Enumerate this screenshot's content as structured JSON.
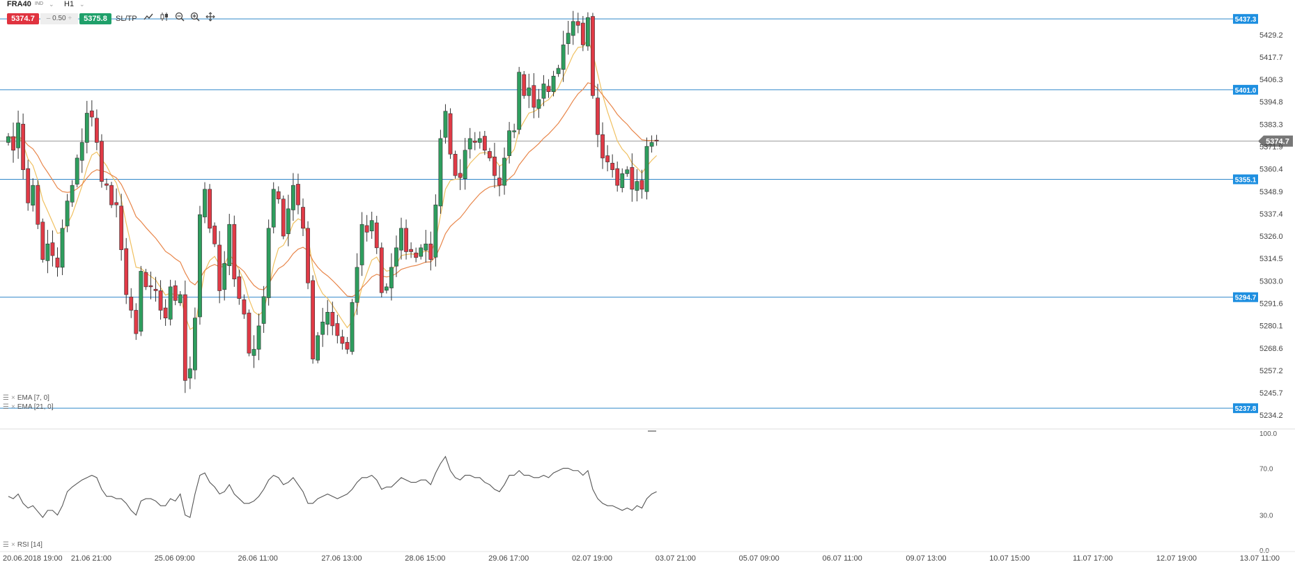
{
  "toolbar": {
    "symbol": "FRA40",
    "symbol_type": "IND",
    "timeframe": "H1",
    "sell_price": "5374.7",
    "spread": "0.50",
    "buy_price": "5375.8",
    "sltp_label": "SL/TP",
    "icons": [
      "line-chart-icon",
      "candle-type-icon",
      "zoom-out-icon",
      "zoom-in-icon",
      "crosshair-move-icon"
    ]
  },
  "indicators": {
    "ema_fast_label": "EMA [7, 0]",
    "ema_slow_label": "EMA [21, 0]",
    "rsi_label": "RSI [14]"
  },
  "colors": {
    "bull": "#2e9e5e",
    "bear": "#e03a46",
    "ema_fast": "#f0c060",
    "ema_slow": "#e8864a",
    "hline": "#2f86c9",
    "price_tag": "#1e8fe0",
    "current_price_tag": "#777777",
    "rsi_line": "#555555"
  },
  "chart_data": {
    "type": "candlestick",
    "symbol": "FRA40",
    "timeframe": "H1",
    "price_axis": {
      "ylim": [
        5230.0,
        5442.0
      ],
      "ticks": [
        "5429.2",
        "5417.7",
        "5406.3",
        "5394.8",
        "5383.3",
        "5371.9",
        "5360.4",
        "5348.9",
        "5337.4",
        "5326.0",
        "5314.5",
        "5303.0",
        "5291.6",
        "5280.1",
        "5268.6",
        "5257.2",
        "5245.7",
        "5234.2"
      ]
    },
    "rsi_axis": {
      "ylim": [
        0,
        100
      ],
      "ticks": [
        "100.0",
        "70.0",
        "30.0",
        "0.0"
      ]
    },
    "x_ticks": [
      {
        "label": "20.06.2018 19:00",
        "i": 0
      },
      {
        "label": "21.06 21:00",
        "i": 17
      },
      {
        "label": "25.06 09:00",
        "i": 34
      },
      {
        "label": "26.06 11:00",
        "i": 51
      },
      {
        "label": "27.06 13:00",
        "i": 68
      },
      {
        "label": "28.06 15:00",
        "i": 85
      },
      {
        "label": "29.06 17:00",
        "i": 102
      },
      {
        "label": "02.07 19:00",
        "i": 119
      },
      {
        "label": "03.07 21:00",
        "i": 136
      },
      {
        "label": "05.07 09:00",
        "i": 153
      },
      {
        "label": "06.07 11:00",
        "i": 170
      },
      {
        "label": "09.07 13:00",
        "i": 187
      },
      {
        "label": "10.07 15:00",
        "i": 204
      },
      {
        "label": "11.07 17:00",
        "i": 221
      },
      {
        "label": "12.07 19:00",
        "i": 238
      },
      {
        "label": "13.07 11:00",
        "i": 255
      }
    ],
    "horizontal_lines": [
      {
        "label": "5437.3",
        "price": 5437.3
      },
      {
        "label": "5401.0",
        "price": 5401.0
      },
      {
        "label": "5355.1",
        "price": 5355.1
      },
      {
        "label": "5294.7",
        "price": 5294.7
      },
      {
        "label": "5237.8",
        "price": 5237.8
      }
    ],
    "current_price": {
      "label": "5374.7",
      "price": 5374.7
    },
    "closes": [
      5377,
      5370,
      5384,
      5360,
      5343,
      5352,
      5332,
      5314,
      5322,
      5316,
      5310,
      5330,
      5344,
      5352,
      5366,
      5374,
      5389,
      5387,
      5374,
      5354,
      5352,
      5342,
      5342,
      5319,
      5296,
      5288,
      5276,
      5308,
      5300,
      5300,
      5298,
      5288,
      5284,
      5300,
      5293,
      5296,
      5252,
      5258,
      5284,
      5337,
      5350,
      5330,
      5322,
      5298,
      5312,
      5332,
      5304,
      5294,
      5286,
      5266,
      5268,
      5280,
      5295,
      5330,
      5350,
      5345,
      5326,
      5340,
      5352,
      5342,
      5330,
      5302,
      5263,
      5275,
      5282,
      5287,
      5280,
      5275,
      5271,
      5268,
      5292,
      5310,
      5332,
      5328,
      5334,
      5320,
      5297,
      5300,
      5310,
      5320,
      5330,
      5318,
      5318,
      5315,
      5320,
      5322,
      5314,
      5342,
      5376,
      5390,
      5368,
      5357,
      5356,
      5370,
      5376,
      5374,
      5376,
      5370,
      5366,
      5357,
      5352,
      5366,
      5380,
      5380,
      5410,
      5398,
      5402,
      5392,
      5396,
      5404,
      5400,
      5408,
      5412,
      5424,
      5430,
      5436,
      5434,
      5424,
      5438,
      5398,
      5378,
      5366,
      5364,
      5360,
      5352,
      5358,
      5360,
      5350,
      5354,
      5350,
      5372,
      5374,
      5374.7
    ],
    "ema_fast": "EMA [7, 0]",
    "ema_slow": "EMA [21, 0]",
    "rsi": [
      46,
      44,
      48,
      40,
      36,
      38,
      33,
      28,
      34,
      34,
      30,
      38,
      50,
      54,
      57,
      60,
      62,
      64,
      62,
      52,
      46,
      46,
      44,
      44,
      40,
      34,
      30,
      42,
      44,
      44,
      42,
      38,
      38,
      44,
      42,
      48,
      30,
      28,
      48,
      64,
      66,
      58,
      54,
      48,
      50,
      56,
      48,
      44,
      40,
      40,
      42,
      46,
      52,
      60,
      64,
      62,
      56,
      58,
      62,
      56,
      50,
      40,
      40,
      44,
      46,
      48,
      46,
      44,
      46,
      48,
      52,
      58,
      62,
      62,
      64,
      60,
      52,
      54,
      54,
      58,
      62,
      60,
      58,
      58,
      60,
      60,
      56,
      66,
      74,
      80,
      68,
      62,
      60,
      64,
      64,
      62,
      62,
      58,
      56,
      52,
      50,
      56,
      64,
      64,
      68,
      64,
      64,
      62,
      62,
      64,
      62,
      66,
      68,
      70,
      70,
      68,
      68,
      64,
      68,
      52,
      44,
      40,
      38,
      38,
      36,
      34,
      36,
      34,
      38,
      36,
      44,
      48,
      50
    ]
  }
}
